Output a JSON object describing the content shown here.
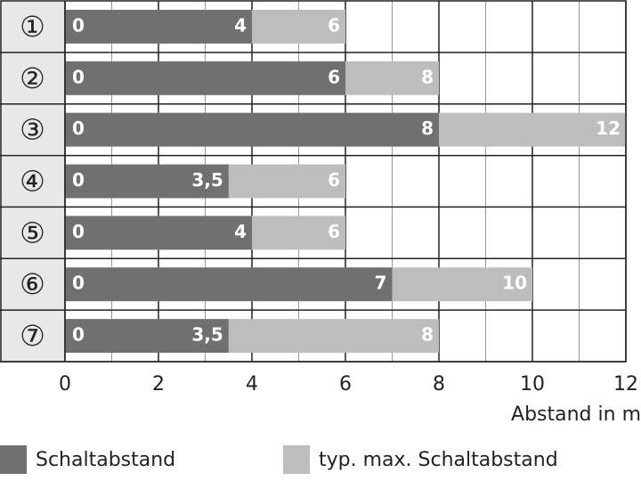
{
  "chart_data": {
    "type": "overlap-bar",
    "categories": [
      "①",
      "②",
      "③",
      "④",
      "⑤",
      "⑥",
      "⑦"
    ],
    "start_values": [
      0,
      0,
      0,
      0,
      0,
      0,
      0
    ],
    "series": [
      {
        "name": "typ. max. Schaltabstand",
        "color": "#bdbdbd",
        "values": [
          6,
          8,
          12,
          6,
          6,
          10,
          8
        ]
      },
      {
        "name": "Schaltabstand",
        "color": "#707070",
        "values": [
          4,
          6,
          8,
          3.5,
          4,
          7,
          3.5
        ],
        "value_labels": [
          "4",
          "6",
          "8",
          "3,5",
          "4",
          "7",
          "3,5"
        ]
      }
    ],
    "xlabel": "Abstand in m",
    "xlim": [
      0,
      12
    ],
    "xticks": [
      0,
      2,
      4,
      6,
      8,
      10,
      12
    ],
    "xminor": [
      1,
      3,
      5,
      7,
      9,
      11
    ],
    "grid": true
  }
}
